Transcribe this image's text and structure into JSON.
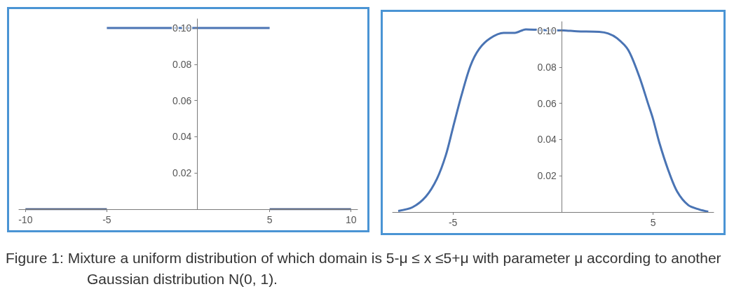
{
  "chart_data": [
    {
      "type": "line",
      "xlim": [
        -10.4,
        10.4
      ],
      "ylim": [
        0,
        0.105
      ],
      "xticks": [
        -10,
        -5,
        5,
        10
      ],
      "yticks": [
        0.02,
        0.04,
        0.06,
        0.08,
        {
          "value": 0.1,
          "label": "0.10"
        }
      ],
      "grid": false,
      "marker": "none",
      "line_style": "solid",
      "series": [
        {
          "color": "#56698c",
          "x": [
            -10,
            -5
          ],
          "values": [
            0,
            0
          ]
        },
        {
          "color": "#4a74b4",
          "x": [
            -5,
            5
          ],
          "values": [
            0.1,
            0.1
          ]
        },
        {
          "color": "#56698c",
          "x": [
            5,
            10
          ],
          "values": [
            0,
            0
          ]
        }
      ],
      "annotations": [
        "Figure 1: Mixture a uniform distribution of which domain is 5-μ ≤ x ≤5+μ  with parameter μ according to another Gaussian distribution N(0, 1)."
      ]
    },
    {
      "type": "line",
      "xlim": [
        -8.02,
        8.03
      ],
      "ylim": [
        0,
        0.105
      ],
      "xticks": [
        -5,
        5
      ],
      "yticks": [
        0.02,
        0.04,
        0.06,
        0.08,
        {
          "value": 0.1,
          "label": "0.10"
        }
      ],
      "grid": false,
      "marker": "none",
      "line_style": "solid",
      "series": [
        {
          "color": "#4a74b4",
          "x": [
            -7.74,
            -7.03,
            -6.36,
            -5.8,
            -5.36,
            -5.0,
            -4.58,
            -4.13,
            -3.69,
            -3.13,
            -2.47,
            -1.91,
            -1.36,
            -0.47,
            0.53,
            1.2,
            2.31,
            2.76,
            3.2,
            3.76,
            4.31,
            4.76,
            5.0,
            5.31,
            5.76,
            6.2,
            6.76,
            7.31,
            7.76
          ],
          "values": [
            0.0006,
            0.0026,
            0.0085,
            0.0184,
            0.0313,
            0.0466,
            0.0642,
            0.0806,
            0.09,
            0.0959,
            0.0988,
            0.0988,
            0.1008,
            0.1004,
            0.1002,
            0.0997,
            0.0994,
            0.0985,
            0.0959,
            0.0894,
            0.0748,
            0.0595,
            0.0513,
            0.0384,
            0.0231,
            0.0114,
            0.0038,
            0.0014,
            0.0002
          ]
        }
      ]
    }
  ]
}
